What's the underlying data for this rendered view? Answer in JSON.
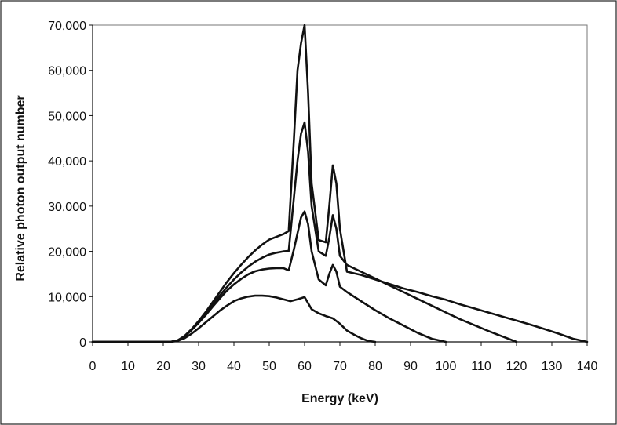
{
  "chart_data": {
    "type": "line",
    "title": "",
    "xlabel": "Energy (keV)",
    "ylabel": "Relative photon output number",
    "xlim": [
      0,
      140
    ],
    "ylim": [
      0,
      70000
    ],
    "x_ticks": [
      0,
      10,
      20,
      30,
      40,
      50,
      60,
      70,
      80,
      90,
      100,
      110,
      120,
      130,
      140
    ],
    "x_tick_labels": [
      "0",
      "10",
      "20",
      "30",
      "40",
      "50",
      "60",
      "70",
      "80",
      "90",
      "100",
      "110",
      "120",
      "130",
      "140"
    ],
    "y_ticks": [
      0,
      10000,
      20000,
      30000,
      40000,
      50000,
      60000,
      70000
    ],
    "y_tick_labels": [
      "0",
      "10,000",
      "20,000",
      "30,000",
      "40,000",
      "50,000",
      "60,000",
      "70,000"
    ],
    "grid": false,
    "legend": "none",
    "line_color": "#111111",
    "series": [
      {
        "x": [
          0,
          22,
          24,
          26,
          28,
          30,
          32,
          34,
          36,
          38,
          40,
          42,
          44,
          46,
          48,
          50,
          52,
          54,
          56,
          58,
          60,
          62,
          64,
          66,
          68,
          70,
          72,
          74,
          76,
          78,
          80
        ],
        "values": [
          0,
          0,
          200,
          800,
          1800,
          3000,
          4300,
          5600,
          6900,
          8000,
          9000,
          9600,
          10000,
          10200,
          10200,
          10100,
          9800,
          9400,
          9000,
          9400,
          9900,
          7200,
          6300,
          5700,
          5200,
          4000,
          2500,
          1600,
          800,
          200,
          0
        ]
      },
      {
        "x": [
          0,
          22,
          24,
          26,
          28,
          30,
          32,
          34,
          36,
          38,
          40,
          42,
          44,
          46,
          48,
          50,
          52,
          54,
          55.5,
          57,
          58,
          59,
          60,
          61,
          62,
          64,
          66,
          67,
          68,
          69,
          70,
          72,
          76,
          80,
          84,
          88,
          92,
          96,
          100
        ],
        "values": [
          0,
          0,
          300,
          1200,
          2600,
          4200,
          5900,
          7800,
          9600,
          11300,
          12700,
          13900,
          14900,
          15600,
          16000,
          16200,
          16300,
          16300,
          15800,
          20500,
          24000,
          27500,
          28800,
          26000,
          20000,
          13800,
          12500,
          15000,
          17000,
          15500,
          12200,
          11000,
          9000,
          7000,
          5200,
          3600,
          2000,
          700,
          0
        ]
      },
      {
        "x": [
          0,
          22,
          24,
          26,
          28,
          30,
          32,
          34,
          36,
          38,
          40,
          42,
          44,
          46,
          48,
          50,
          52,
          54,
          55.5,
          57,
          58,
          59,
          60,
          61,
          62,
          64,
          66,
          67,
          68,
          69,
          70,
          72,
          76,
          80,
          84,
          88,
          92,
          96,
          100,
          104,
          108,
          112,
          116,
          120
        ],
        "values": [
          0,
          0,
          300,
          1200,
          2700,
          4400,
          6200,
          8200,
          10200,
          12100,
          13800,
          15300,
          16600,
          17700,
          18600,
          19300,
          19700,
          20000,
          20100,
          32000,
          40000,
          46000,
          48500,
          42000,
          30000,
          20000,
          19000,
          23000,
          28000,
          25000,
          19000,
          17000,
          15500,
          14000,
          12500,
          11000,
          9500,
          8000,
          6500,
          5000,
          3700,
          2400,
          1200,
          0
        ]
      },
      {
        "x": [
          0,
          22,
          24,
          26,
          28,
          30,
          32,
          34,
          36,
          38,
          40,
          42,
          44,
          46,
          48,
          50,
          52,
          54,
          55.5,
          57,
          58,
          59,
          60,
          61,
          62,
          64,
          66,
          67,
          68,
          69,
          70,
          72,
          76,
          80,
          84,
          88,
          92,
          96,
          100,
          104,
          108,
          112,
          116,
          120,
          124,
          128,
          132,
          136,
          140
        ],
        "values": [
          0,
          0,
          300,
          1300,
          2800,
          4600,
          6600,
          8800,
          11000,
          13200,
          15200,
          17000,
          18700,
          20200,
          21500,
          22600,
          23200,
          23800,
          24500,
          45000,
          60000,
          66000,
          70000,
          55000,
          35000,
          22500,
          22000,
          30000,
          39000,
          35000,
          25000,
          15500,
          14800,
          13800,
          12800,
          11800,
          11000,
          10100,
          9300,
          8300,
          7400,
          6500,
          5600,
          4700,
          3800,
          2800,
          1800,
          700,
          0
        ]
      }
    ]
  }
}
